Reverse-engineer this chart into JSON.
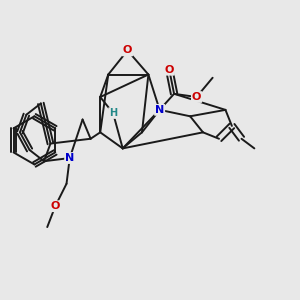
{
  "bg_color": "#e8e8e8",
  "bond_color": "#1a1a1a",
  "N_color": "#0000cc",
  "O_color": "#cc0000",
  "H_color": "#228888",
  "bond_width": 1.4,
  "fig_w": 3.0,
  "fig_h": 3.0,
  "dpi": 100,
  "xlim": [
    0.05,
    0.98
  ],
  "ylim": [
    0.12,
    0.95
  ]
}
